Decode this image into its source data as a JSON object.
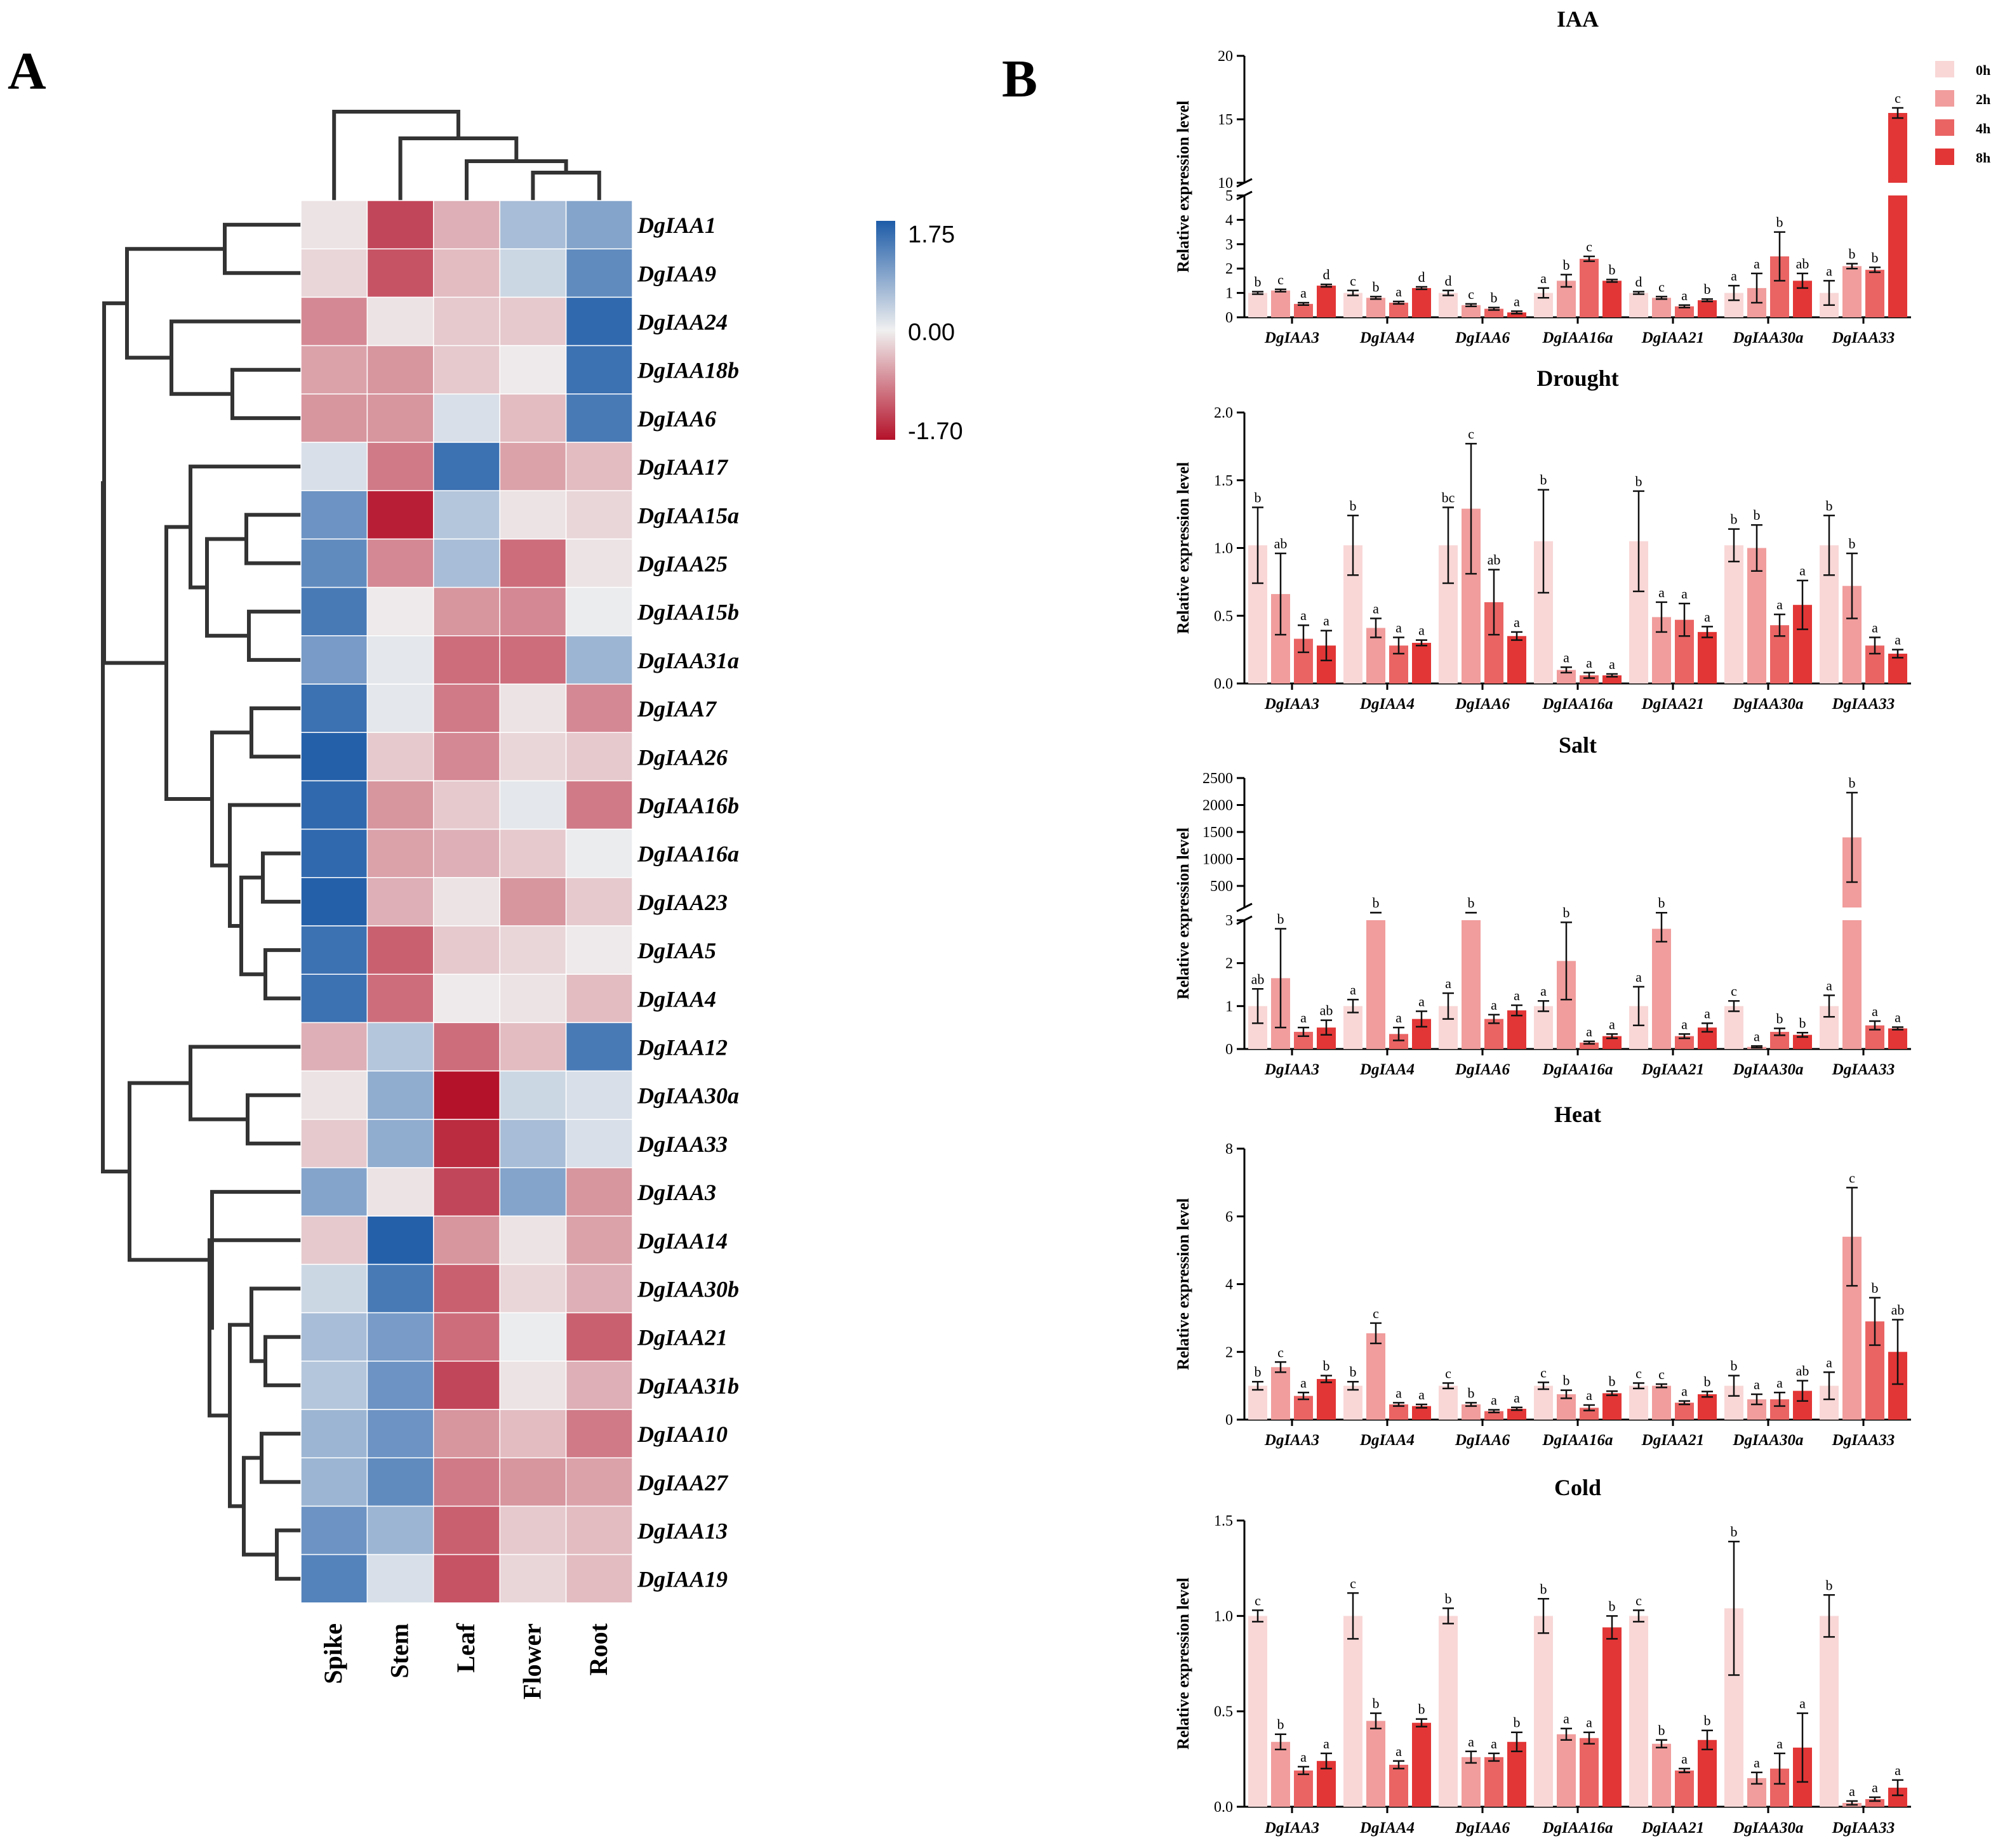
{
  "panels": {
    "a_label": "A",
    "b_label": "B"
  },
  "colors": {
    "t0h": "#f9d7d7",
    "t2h": "#f19d9d",
    "t4h": "#ea6464",
    "t8h": "#e23636",
    "heat_high": "#1e5ca8",
    "heat_mid": "#f0f0f0",
    "heat_low": "#b4122a"
  },
  "legend": [
    "0h",
    "2h",
    "4h",
    "8h"
  ],
  "heatmap": {
    "columns": [
      "Spike",
      "Stem",
      "Leaf",
      "Flower",
      "Root"
    ],
    "colorbar": {
      "max": 1.75,
      "mid": 0.0,
      "min": -1.7,
      "max_label": "1.75",
      "mid_label": "0.00",
      "min_label": "-1.70"
    },
    "rows": [
      {
        "gene": "DgIAA1",
        "values": [
          -0.1,
          -1.3,
          -0.5,
          0.6,
          0.9
        ]
      },
      {
        "gene": "DgIAA9",
        "values": [
          -0.2,
          -1.2,
          -0.4,
          0.3,
          1.2
        ]
      },
      {
        "gene": "DgIAA24",
        "values": [
          -0.8,
          -0.1,
          -0.3,
          -0.3,
          1.6
        ]
      },
      {
        "gene": "DgIAA18b",
        "values": [
          -0.6,
          -0.7,
          -0.3,
          -0.05,
          1.5
        ]
      },
      {
        "gene": "DgIAA6",
        "values": [
          -0.7,
          -0.7,
          0.2,
          -0.4,
          1.4
        ]
      },
      {
        "gene": "DgIAA17",
        "values": [
          0.2,
          -0.9,
          1.5,
          -0.6,
          -0.4
        ]
      },
      {
        "gene": "DgIAA15a",
        "values": [
          1.1,
          -1.6,
          0.5,
          -0.1,
          -0.2
        ]
      },
      {
        "gene": "DgIAA25",
        "values": [
          1.2,
          -0.8,
          0.6,
          -1.0,
          -0.1
        ]
      },
      {
        "gene": "DgIAA15b",
        "values": [
          1.4,
          -0.05,
          -0.7,
          -0.8,
          0.05
        ]
      },
      {
        "gene": "DgIAA31a",
        "values": [
          1.0,
          0.1,
          -1.0,
          -1.0,
          0.7
        ]
      },
      {
        "gene": "DgIAA7",
        "values": [
          1.5,
          0.1,
          -0.9,
          -0.1,
          -0.8
        ]
      },
      {
        "gene": "DgIAA26",
        "values": [
          1.7,
          -0.3,
          -0.8,
          -0.2,
          -0.3
        ]
      },
      {
        "gene": "DgIAA16b",
        "values": [
          1.6,
          -0.7,
          -0.3,
          0.1,
          -0.9
        ]
      },
      {
        "gene": "DgIAA16a",
        "values": [
          1.6,
          -0.6,
          -0.5,
          -0.3,
          0.05
        ]
      },
      {
        "gene": "DgIAA23",
        "values": [
          1.7,
          -0.5,
          -0.1,
          -0.7,
          -0.3
        ]
      },
      {
        "gene": "DgIAA5",
        "values": [
          1.5,
          -1.1,
          -0.3,
          -0.2,
          -0.05
        ]
      },
      {
        "gene": "DgIAA4",
        "values": [
          1.5,
          -1.0,
          -0.05,
          -0.1,
          -0.4
        ]
      },
      {
        "gene": "DgIAA12",
        "values": [
          -0.5,
          0.5,
          -1.0,
          -0.4,
          1.4
        ]
      },
      {
        "gene": "DgIAA30a",
        "values": [
          -0.1,
          0.8,
          -1.7,
          0.3,
          0.2
        ]
      },
      {
        "gene": "DgIAA33",
        "values": [
          -0.3,
          0.8,
          -1.5,
          0.6,
          0.2
        ]
      },
      {
        "gene": "DgIAA3",
        "values": [
          0.9,
          -0.1,
          -1.3,
          0.9,
          -0.7
        ]
      },
      {
        "gene": "DgIAA14",
        "values": [
          -0.3,
          1.7,
          -0.7,
          -0.1,
          -0.6
        ]
      },
      {
        "gene": "DgIAA30b",
        "values": [
          0.3,
          1.4,
          -1.1,
          -0.2,
          -0.5
        ]
      },
      {
        "gene": "DgIAA21",
        "values": [
          0.6,
          1.0,
          -1.0,
          0.05,
          -1.1
        ]
      },
      {
        "gene": "DgIAA31b",
        "values": [
          0.5,
          1.1,
          -1.3,
          -0.1,
          -0.5
        ]
      },
      {
        "gene": "DgIAA10",
        "values": [
          0.7,
          1.1,
          -0.7,
          -0.4,
          -0.9
        ]
      },
      {
        "gene": "DgIAA27",
        "values": [
          0.7,
          1.2,
          -0.9,
          -0.7,
          -0.6
        ]
      },
      {
        "gene": "DgIAA13",
        "values": [
          1.1,
          0.7,
          -1.1,
          -0.3,
          -0.4
        ]
      },
      {
        "gene": "DgIAA19",
        "values": [
          1.3,
          0.2,
          -1.2,
          -0.2,
          -0.4
        ]
      }
    ]
  },
  "chart_data": [
    {
      "type": "bar",
      "title": "IAA",
      "ylabel": "Relative expression level",
      "categories": [
        "DgIAA3",
        "DgIAA4",
        "DgIAA6",
        "DgIAA16a",
        "DgIAA21",
        "DgIAA30a",
        "DgIAA33"
      ],
      "y_axis_break": {
        "lower_max": 5,
        "upper_min": 10,
        "upper_max": 20
      },
      "yticks": [
        "0",
        "1",
        "2",
        "3",
        "4",
        "5",
        "10",
        "15",
        "20"
      ],
      "series": [
        {
          "name": "0h",
          "values": [
            1.0,
            1.0,
            1.0,
            1.0,
            1.0,
            1.0,
            1.0
          ],
          "errors": [
            0.05,
            0.1,
            0.1,
            0.2,
            0.05,
            0.3,
            0.5
          ],
          "letters": [
            "b",
            "c",
            "d",
            "a",
            "d",
            "a",
            "a"
          ]
        },
        {
          "name": "2h",
          "values": [
            1.1,
            0.8,
            0.5,
            1.5,
            0.8,
            1.2,
            2.1
          ],
          "errors": [
            0.05,
            0.05,
            0.05,
            0.25,
            0.05,
            0.6,
            0.1
          ],
          "letters": [
            "c",
            "b",
            "c",
            "b",
            "c",
            "a",
            "b"
          ]
        },
        {
          "name": "4h",
          "values": [
            0.55,
            0.6,
            0.35,
            2.4,
            0.45,
            2.5,
            1.95
          ],
          "errors": [
            0.05,
            0.05,
            0.05,
            0.1,
            0.05,
            1.0,
            0.1
          ],
          "letters": [
            "a",
            "a",
            "b",
            "c",
            "a",
            "b",
            "b"
          ]
        },
        {
          "name": "8h",
          "values": [
            1.3,
            1.2,
            0.2,
            1.5,
            0.7,
            1.5,
            15.5
          ],
          "errors": [
            0.05,
            0.05,
            0.05,
            0.05,
            0.05,
            0.3,
            0.4
          ],
          "letters": [
            "d",
            "d",
            "a",
            "b",
            "b",
            "ab",
            "c"
          ]
        }
      ]
    },
    {
      "type": "bar",
      "title": "Drought",
      "ylabel": "Relative expression level",
      "categories": [
        "DgIAA3",
        "DgIAA4",
        "DgIAA6",
        "DgIAA16a",
        "DgIAA21",
        "DgIAA30a",
        "DgIAA33"
      ],
      "ylim": [
        0,
        2.0
      ],
      "yticks": [
        "0.0",
        "0.5",
        "1.0",
        "1.5",
        "2.0"
      ],
      "series": [
        {
          "name": "0h",
          "values": [
            1.02,
            1.02,
            1.02,
            1.05,
            1.05,
            1.02,
            1.02
          ],
          "errors": [
            0.28,
            0.22,
            0.28,
            0.38,
            0.37,
            0.12,
            0.22
          ],
          "letters": [
            "b",
            "b",
            "bc",
            "b",
            "b",
            "b",
            "b"
          ]
        },
        {
          "name": "2h",
          "values": [
            0.66,
            0.41,
            1.29,
            0.1,
            0.49,
            1.0,
            0.72
          ],
          "errors": [
            0.3,
            0.07,
            0.48,
            0.02,
            0.11,
            0.17,
            0.24
          ],
          "letters": [
            "ab",
            "a",
            "c",
            "a",
            "a",
            "b",
            "b"
          ]
        },
        {
          "name": "4h",
          "values": [
            0.33,
            0.28,
            0.6,
            0.06,
            0.47,
            0.43,
            0.28
          ],
          "errors": [
            0.1,
            0.06,
            0.24,
            0.02,
            0.12,
            0.08,
            0.06
          ],
          "letters": [
            "a",
            "a",
            "ab",
            "a",
            "a",
            "a",
            "a"
          ]
        },
        {
          "name": "8h",
          "values": [
            0.28,
            0.3,
            0.35,
            0.06,
            0.38,
            0.58,
            0.22
          ],
          "errors": [
            0.11,
            0.02,
            0.03,
            0.01,
            0.04,
            0.18,
            0.03
          ],
          "letters": [
            "a",
            "a",
            "a",
            "a",
            "a",
            "a",
            "a"
          ]
        }
      ]
    },
    {
      "type": "bar",
      "title": "Salt",
      "ylabel": "Relative expression level",
      "categories": [
        "DgIAA3",
        "DgIAA4",
        "DgIAA6",
        "DgIAA16a",
        "DgIAA21",
        "DgIAA30a",
        "DgIAA33"
      ],
      "y_axis_break": {
        "lower_max": 3,
        "upper_min": 100,
        "upper_max": 2500
      },
      "yticks": [
        "0",
        "1",
        "2",
        "3",
        "500",
        "1000",
        "1500",
        "2000",
        "2500"
      ],
      "series": [
        {
          "name": "0h",
          "values": [
            1.0,
            1.0,
            1.0,
            1.0,
            1.0,
            1.0,
            1.0
          ],
          "errors": [
            0.4,
            0.15,
            0.3,
            0.12,
            0.45,
            0.12,
            0.25
          ],
          "letters": [
            "ab",
            "a",
            "a",
            "a",
            "a",
            "c",
            "a"
          ]
        },
        {
          "name": "2h",
          "values": [
            1.65,
            4.0,
            3.5,
            2.05,
            2.8,
            0.05,
            1400
          ],
          "errors": [
            1.15,
            0.3,
            0.3,
            0.9,
            0.3,
            0.02,
            830
          ],
          "letters": [
            "b",
            "b",
            "b",
            "b",
            "b",
            "a",
            "b"
          ]
        },
        {
          "name": "4h",
          "values": [
            0.4,
            0.35,
            0.7,
            0.15,
            0.3,
            0.4,
            0.55
          ],
          "errors": [
            0.1,
            0.15,
            0.1,
            0.03,
            0.05,
            0.08,
            0.1
          ],
          "letters": [
            "a",
            "a",
            "a",
            "a",
            "a",
            "b",
            "a"
          ]
        },
        {
          "name": "8h",
          "values": [
            0.5,
            0.7,
            0.9,
            0.3,
            0.5,
            0.33,
            0.48
          ],
          "errors": [
            0.17,
            0.18,
            0.12,
            0.05,
            0.1,
            0.05,
            0.03
          ],
          "letters": [
            "ab",
            "a",
            "a",
            "a",
            "a",
            "b",
            "a"
          ]
        }
      ]
    },
    {
      "type": "bar",
      "title": "Heat",
      "ylabel": "Relative expression level",
      "categories": [
        "DgIAA3",
        "DgIAA4",
        "DgIAA6",
        "DgIAA16a",
        "DgIAA21",
        "DgIAA30a",
        "DgIAA33"
      ],
      "ylim": [
        0,
        8
      ],
      "yticks": [
        "0",
        "2",
        "4",
        "6",
        "8"
      ],
      "series": [
        {
          "name": "0h",
          "values": [
            1.0,
            1.0,
            1.0,
            1.0,
            1.0,
            1.0,
            1.0
          ],
          "errors": [
            0.12,
            0.12,
            0.08,
            0.1,
            0.08,
            0.3,
            0.4
          ],
          "letters": [
            "b",
            "b",
            "c",
            "c",
            "c",
            "b",
            "a"
          ]
        },
        {
          "name": "2h",
          "values": [
            1.55,
            2.55,
            0.45,
            0.75,
            1.0,
            0.6,
            5.4
          ],
          "errors": [
            0.15,
            0.3,
            0.05,
            0.12,
            0.05,
            0.15,
            1.45
          ],
          "letters": [
            "c",
            "c",
            "b",
            "b",
            "c",
            "a",
            "c"
          ]
        },
        {
          "name": "4h",
          "values": [
            0.7,
            0.45,
            0.25,
            0.35,
            0.5,
            0.6,
            2.9
          ],
          "errors": [
            0.1,
            0.05,
            0.04,
            0.08,
            0.05,
            0.2,
            0.7
          ],
          "letters": [
            "a",
            "a",
            "a",
            "a",
            "a",
            "a",
            "b"
          ]
        },
        {
          "name": "8h",
          "values": [
            1.2,
            0.4,
            0.32,
            0.78,
            0.75,
            0.85,
            2.0
          ],
          "errors": [
            0.1,
            0.05,
            0.04,
            0.06,
            0.08,
            0.3,
            0.95
          ],
          "letters": [
            "b",
            "a",
            "a",
            "b",
            "b",
            "ab",
            "ab"
          ]
        }
      ]
    },
    {
      "type": "bar",
      "title": "Cold",
      "ylabel": "Relative expression level",
      "categories": [
        "DgIAA3",
        "DgIAA4",
        "DgIAA6",
        "DgIAA16a",
        "DgIAA21",
        "DgIAA30a",
        "DgIAA33"
      ],
      "ylim": [
        0,
        1.5
      ],
      "yticks": [
        "0.0",
        "0.5",
        "1.0",
        "1.5"
      ],
      "series": [
        {
          "name": "0h",
          "values": [
            1.0,
            1.0,
            1.0,
            1.0,
            1.0,
            1.04,
            1.0
          ],
          "errors": [
            0.03,
            0.12,
            0.04,
            0.09,
            0.03,
            0.35,
            0.11
          ],
          "letters": [
            "c",
            "c",
            "b",
            "b",
            "c",
            "b",
            "b"
          ]
        },
        {
          "name": "2h",
          "values": [
            0.34,
            0.45,
            0.26,
            0.38,
            0.33,
            0.15,
            0.02
          ],
          "errors": [
            0.04,
            0.04,
            0.03,
            0.03,
            0.02,
            0.03,
            0.01
          ],
          "letters": [
            "b",
            "b",
            "a",
            "a",
            "b",
            "a",
            "a"
          ]
        },
        {
          "name": "4h",
          "values": [
            0.19,
            0.22,
            0.26,
            0.36,
            0.19,
            0.2,
            0.04
          ],
          "errors": [
            0.02,
            0.02,
            0.02,
            0.03,
            0.01,
            0.08,
            0.01
          ],
          "letters": [
            "a",
            "a",
            "a",
            "a",
            "a",
            "a",
            "a"
          ]
        },
        {
          "name": "8h",
          "values": [
            0.24,
            0.44,
            0.34,
            0.94,
            0.35,
            0.31,
            0.1
          ],
          "errors": [
            0.04,
            0.02,
            0.05,
            0.06,
            0.05,
            0.18,
            0.04
          ],
          "letters": [
            "a",
            "b",
            "b",
            "b",
            "b",
            "a",
            "a"
          ]
        }
      ]
    }
  ]
}
